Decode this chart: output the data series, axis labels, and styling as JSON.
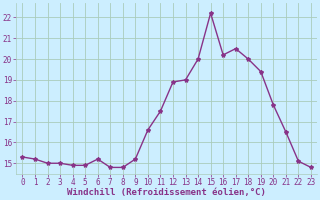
{
  "x": [
    0,
    1,
    2,
    3,
    4,
    5,
    6,
    7,
    8,
    9,
    10,
    11,
    12,
    13,
    14,
    15,
    16,
    17,
    18,
    19,
    20,
    21,
    22,
    23
  ],
  "y": [
    15.3,
    15.2,
    15.0,
    15.0,
    14.9,
    14.9,
    15.2,
    14.8,
    14.8,
    15.2,
    16.6,
    17.5,
    18.9,
    19.0,
    20.0,
    22.2,
    20.2,
    20.5,
    20.0,
    19.4,
    17.8,
    16.5,
    15.1,
    14.8
  ],
  "line_color": "#883388",
  "marker": "*",
  "marker_size": 3,
  "xlabel": "Windchill (Refroidissement éolien,°C)",
  "xlabel_fontsize": 6.5,
  "bg_color": "#cceeff",
  "grid_color": "#aaccbb",
  "ylim": [
    14.5,
    22.7
  ],
  "yticks": [
    15,
    16,
    17,
    18,
    19,
    20,
    21,
    22
  ],
  "xticks": [
    0,
    1,
    2,
    3,
    4,
    5,
    6,
    7,
    8,
    9,
    10,
    11,
    12,
    13,
    14,
    15,
    16,
    17,
    18,
    19,
    20,
    21,
    22,
    23
  ],
  "tick_fontsize": 5.5,
  "line_width": 1.0
}
